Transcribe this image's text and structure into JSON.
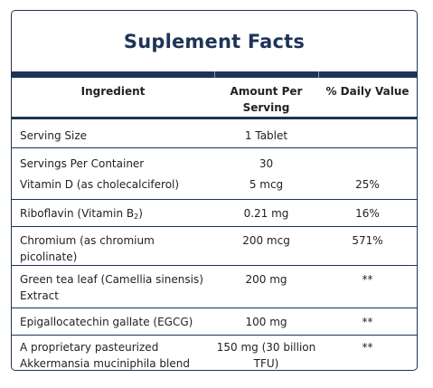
{
  "title": "Suplement Facts",
  "headers": {
    "ingredient": "Ingredient",
    "amount": "Amount Per Serving",
    "daily_value": "% Daily Value"
  },
  "rows": [
    {
      "ingredient": "Serving Size",
      "amount": "1 Tablet",
      "daily_value": ""
    },
    {
      "ingredient": "Servings Per Container",
      "amount": "30",
      "daily_value": ""
    },
    {
      "ingredient": "Vitamin D (as cholecalciferol)",
      "amount": "5 mcg",
      "daily_value": "25%"
    },
    {
      "ingredient": "Riboflavin (Vitamin B",
      "ingredient_sub": "2",
      "ingredient_tail": ")",
      "amount": "0.21 mg",
      "daily_value": "16%"
    },
    {
      "ingredient": "Chromium (as chromium picolinate)",
      "amount": "200 mcg",
      "daily_value": "571%"
    },
    {
      "ingredient": "Green tea leaf (Camellia sinensis) Extract",
      "amount": "200 mg",
      "daily_value": "**"
    },
    {
      "ingredient": "Epigallocatechin gallate (EGCG)",
      "amount": "100 mg",
      "daily_value": "**"
    },
    {
      "ingredient": "A proprietary pasteurized Akkermansia muciniphila blend",
      "amount": "150 mg (30 billion TFU)",
      "daily_value": "**"
    }
  ]
}
